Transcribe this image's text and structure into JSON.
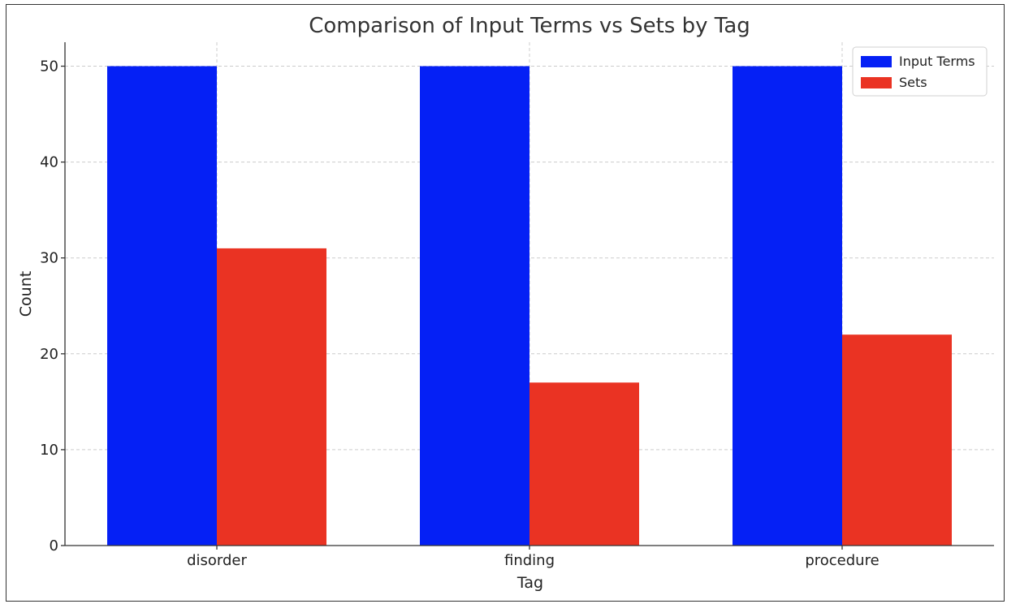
{
  "chart_data": {
    "type": "bar",
    "title": "Comparison of Input Terms vs Sets by Tag",
    "xlabel": "Tag",
    "ylabel": "Count",
    "categories": [
      "disorder",
      "finding",
      "procedure"
    ],
    "series": [
      {
        "name": "Input Terms",
        "color": "#0520f5",
        "values": [
          50,
          50,
          50
        ]
      },
      {
        "name": "Sets",
        "color": "#ea3323",
        "values": [
          31,
          17,
          22
        ]
      }
    ],
    "ylim": [
      0,
      52.5
    ],
    "yticks": [
      0,
      10,
      20,
      30,
      40,
      50
    ],
    "grid": true,
    "legend": {
      "position": "top-right"
    }
  }
}
